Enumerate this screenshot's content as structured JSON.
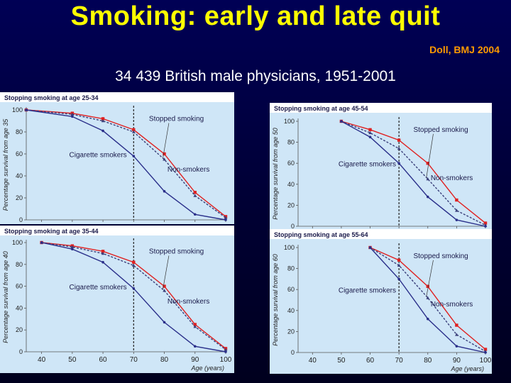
{
  "slide": {
    "title": "Smoking: early and late quit",
    "citation": "Doll, BMJ 2004",
    "subtitle": "34 439 British male physicians, 1951-2001"
  },
  "colors": {
    "panel_bg": "#cfe6f7",
    "header_bg": "#ffffff",
    "red": "#e02020",
    "blue": "#2a2f8a",
    "dashed": "#3a3f7a"
  },
  "chart_data": [
    {
      "type": "line",
      "panel": "top-left",
      "title": "Stopping smoking at age 25-34",
      "ylabel": "Percentage survival from age 35",
      "xlabel": "",
      "xlim": [
        35,
        100
      ],
      "ylim": [
        0,
        100
      ],
      "quit_age": 70,
      "yticks": [
        "0",
        "20",
        "40",
        "60",
        "80",
        "100"
      ],
      "xticks": [],
      "labels": {
        "stopped": "Stopped smoking",
        "cigarette": "Cigarette smokers",
        "non": "Non-smokers"
      },
      "series": [
        {
          "name": "Non-smokers",
          "x": [
            35,
            50,
            60,
            70,
            80,
            90,
            100
          ],
          "y": [
            100,
            97,
            92,
            82,
            60,
            25,
            3
          ]
        },
        {
          "name": "Stopped smoking",
          "x": [
            35,
            50,
            60,
            70,
            80,
            90,
            100
          ],
          "y": [
            100,
            96,
            90,
            80,
            55,
            22,
            2
          ]
        },
        {
          "name": "Cigarette smokers",
          "x": [
            35,
            50,
            60,
            70,
            80,
            90,
            100
          ],
          "y": [
            100,
            94,
            81,
            58,
            26,
            5,
            0
          ]
        }
      ]
    },
    {
      "type": "line",
      "panel": "bottom-left",
      "title": "Stopping smoking at age 35-44",
      "ylabel": "Percentage survival from age 40",
      "xlabel": "Age (years)",
      "xlim": [
        35,
        100
      ],
      "ylim": [
        0,
        100
      ],
      "quit_age": 70,
      "yticks": [
        "0",
        "20",
        "40",
        "60",
        "80",
        "100"
      ],
      "xticks": [
        "40",
        "50",
        "60",
        "70",
        "80",
        "90",
        "100"
      ],
      "labels": {
        "stopped": "Stopped smoking",
        "cigarette": "Cigarette smokers",
        "non": "Non-smokers"
      },
      "series": [
        {
          "name": "Non-smokers",
          "x": [
            40,
            50,
            60,
            70,
            80,
            90,
            100
          ],
          "y": [
            100,
            97,
            92,
            82,
            60,
            25,
            3
          ]
        },
        {
          "name": "Stopped smoking",
          "x": [
            40,
            50,
            60,
            70,
            80,
            90,
            100
          ],
          "y": [
            100,
            96,
            90,
            79,
            56,
            23,
            2
          ]
        },
        {
          "name": "Cigarette smokers",
          "x": [
            40,
            50,
            60,
            70,
            80,
            90,
            100
          ],
          "y": [
            100,
            94,
            82,
            58,
            27,
            5,
            0
          ]
        }
      ]
    },
    {
      "type": "line",
      "panel": "top-right",
      "title": "Stopping smoking at age 45-54",
      "ylabel": "Percentage survival from age 50",
      "xlabel": "",
      "xlim": [
        35,
        100
      ],
      "ylim": [
        0,
        100
      ],
      "quit_age": 70,
      "yticks": [
        "0",
        "20",
        "40",
        "60",
        "80",
        "100"
      ],
      "xticks": [],
      "labels": {
        "stopped": "Stopped smoking",
        "cigarette": "Cigarette smokers",
        "non": "Non-smokers"
      },
      "series": [
        {
          "name": "Non-smokers",
          "x": [
            50,
            60,
            70,
            80,
            90,
            100
          ],
          "y": [
            100,
            92,
            82,
            60,
            25,
            3
          ]
        },
        {
          "name": "Stopped smoking",
          "x": [
            50,
            60,
            70,
            80,
            90,
            100
          ],
          "y": [
            100,
            89,
            74,
            45,
            15,
            1
          ]
        },
        {
          "name": "Cigarette smokers",
          "x": [
            50,
            60,
            70,
            80,
            90,
            100
          ],
          "y": [
            100,
            85,
            60,
            28,
            6,
            0
          ]
        }
      ]
    },
    {
      "type": "line",
      "panel": "bottom-right",
      "title": "Stopping smoking at age 55-64",
      "ylabel": "Percentage survival from age 60",
      "xlabel": "Age (years)",
      "xlim": [
        35,
        100
      ],
      "ylim": [
        0,
        100
      ],
      "quit_age": 70,
      "yticks": [
        "0",
        "20",
        "40",
        "60",
        "80",
        "100"
      ],
      "xticks": [
        "40",
        "50",
        "60",
        "70",
        "80",
        "90",
        "100"
      ],
      "labels": {
        "stopped": "Stopped smoking",
        "cigarette": "Cigarette smokers",
        "non": "Non-smokers"
      },
      "series": [
        {
          "name": "Non-smokers",
          "x": [
            60,
            70,
            80,
            90,
            100
          ],
          "y": [
            100,
            88,
            63,
            26,
            3
          ]
        },
        {
          "name": "Stopped smoking",
          "x": [
            60,
            70,
            80,
            90,
            100
          ],
          "y": [
            100,
            83,
            52,
            17,
            1
          ]
        },
        {
          "name": "Cigarette smokers",
          "x": [
            60,
            70,
            80,
            90,
            100
          ],
          "y": [
            100,
            70,
            32,
            6,
            0
          ]
        }
      ]
    }
  ]
}
